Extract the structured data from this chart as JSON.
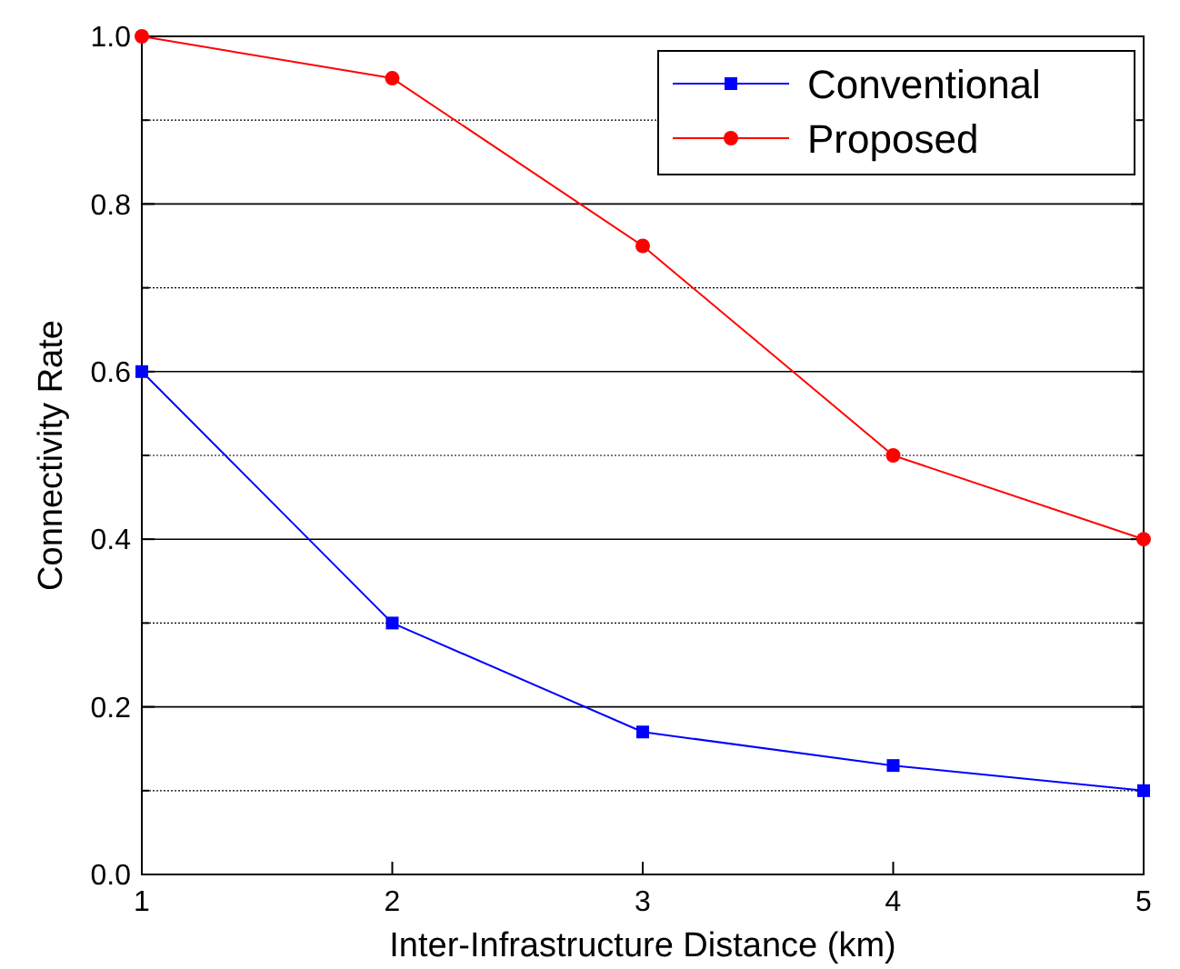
{
  "chart_data": {
    "type": "line",
    "xlabel": "Inter-Infrastructure Distance (km)",
    "ylabel": "Connectivity Rate",
    "x": [
      1,
      2,
      3,
      4,
      5
    ],
    "xlim": [
      1,
      5
    ],
    "xticks": [
      1,
      2,
      3,
      4,
      5
    ],
    "ylim": [
      0,
      1
    ],
    "yticks": [
      {
        "value": 0,
        "label": "0.0"
      },
      {
        "value": 0.1,
        "label": null
      },
      0.2,
      {
        "value": 0.3,
        "label": null
      },
      0.4,
      {
        "value": 0.5,
        "label": null
      },
      0.6,
      {
        "value": 0.7,
        "label": null
      },
      0.8,
      {
        "value": 0.9,
        "label": null
      },
      {
        "value": 1,
        "label": "1.0"
      }
    ],
    "grid": "y",
    "legend": "top right",
    "line_style": "solid",
    "series": [
      {
        "name": "Conventional",
        "color": "#0000ff",
        "marker": "square",
        "values": [
          0.6,
          0.3,
          0.17,
          0.13,
          0.1
        ]
      },
      {
        "name": "Proposed",
        "color": "#ff0000",
        "marker": "circle",
        "values": [
          1.0,
          0.95,
          0.75,
          0.5,
          0.4
        ]
      }
    ]
  }
}
